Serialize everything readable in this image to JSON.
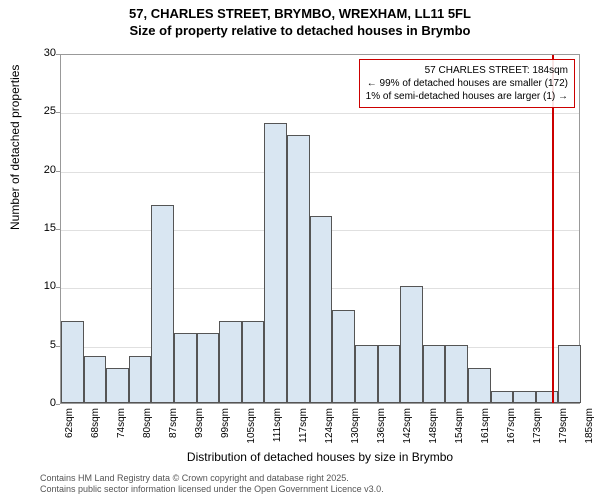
{
  "title": {
    "line1": "57, CHARLES STREET, BRYMBO, WREXHAM, LL11 5FL",
    "line2": "Size of property relative to detached houses in Brymbo",
    "fontsize": 13
  },
  "chart": {
    "type": "histogram",
    "ylabel": "Number of detached properties",
    "xlabel": "Distribution of detached houses by size in Brymbo",
    "label_fontsize": 12,
    "ylim": [
      0,
      30
    ],
    "yticks": [
      0,
      5,
      10,
      15,
      20,
      25,
      30
    ],
    "xtick_labels": [
      "62sqm",
      "68sqm",
      "74sqm",
      "80sqm",
      "87sqm",
      "93sqm",
      "99sqm",
      "105sqm",
      "111sqm",
      "117sqm",
      "124sqm",
      "130sqm",
      "136sqm",
      "142sqm",
      "148sqm",
      "154sqm",
      "161sqm",
      "167sqm",
      "173sqm",
      "179sqm",
      "185sqm"
    ],
    "values": [
      7,
      4,
      3,
      4,
      17,
      6,
      6,
      7,
      7,
      24,
      23,
      16,
      8,
      5,
      5,
      10,
      5,
      5,
      3,
      1,
      1,
      1,
      5
    ],
    "bar_fill": "#d9e6f2",
    "bar_border": "#555555",
    "background_color": "#ffffff",
    "grid_color": "#e0e0e0",
    "red_line_color": "#cc0000",
    "red_line_value": 184
  },
  "infobox": {
    "line1": "57 CHARLES STREET: 184sqm",
    "line2": "← 99% of detached houses are smaller (172)",
    "line3": "1% of semi-detached houses are larger (1) →",
    "border_color": "#cc0000",
    "fontsize": 10
  },
  "footer": {
    "line1": "Contains HM Land Registry data © Crown copyright and database right 2025.",
    "line2": "Contains public sector information licensed under the Open Government Licence v3.0.",
    "fontsize": 9,
    "color": "#555555"
  }
}
